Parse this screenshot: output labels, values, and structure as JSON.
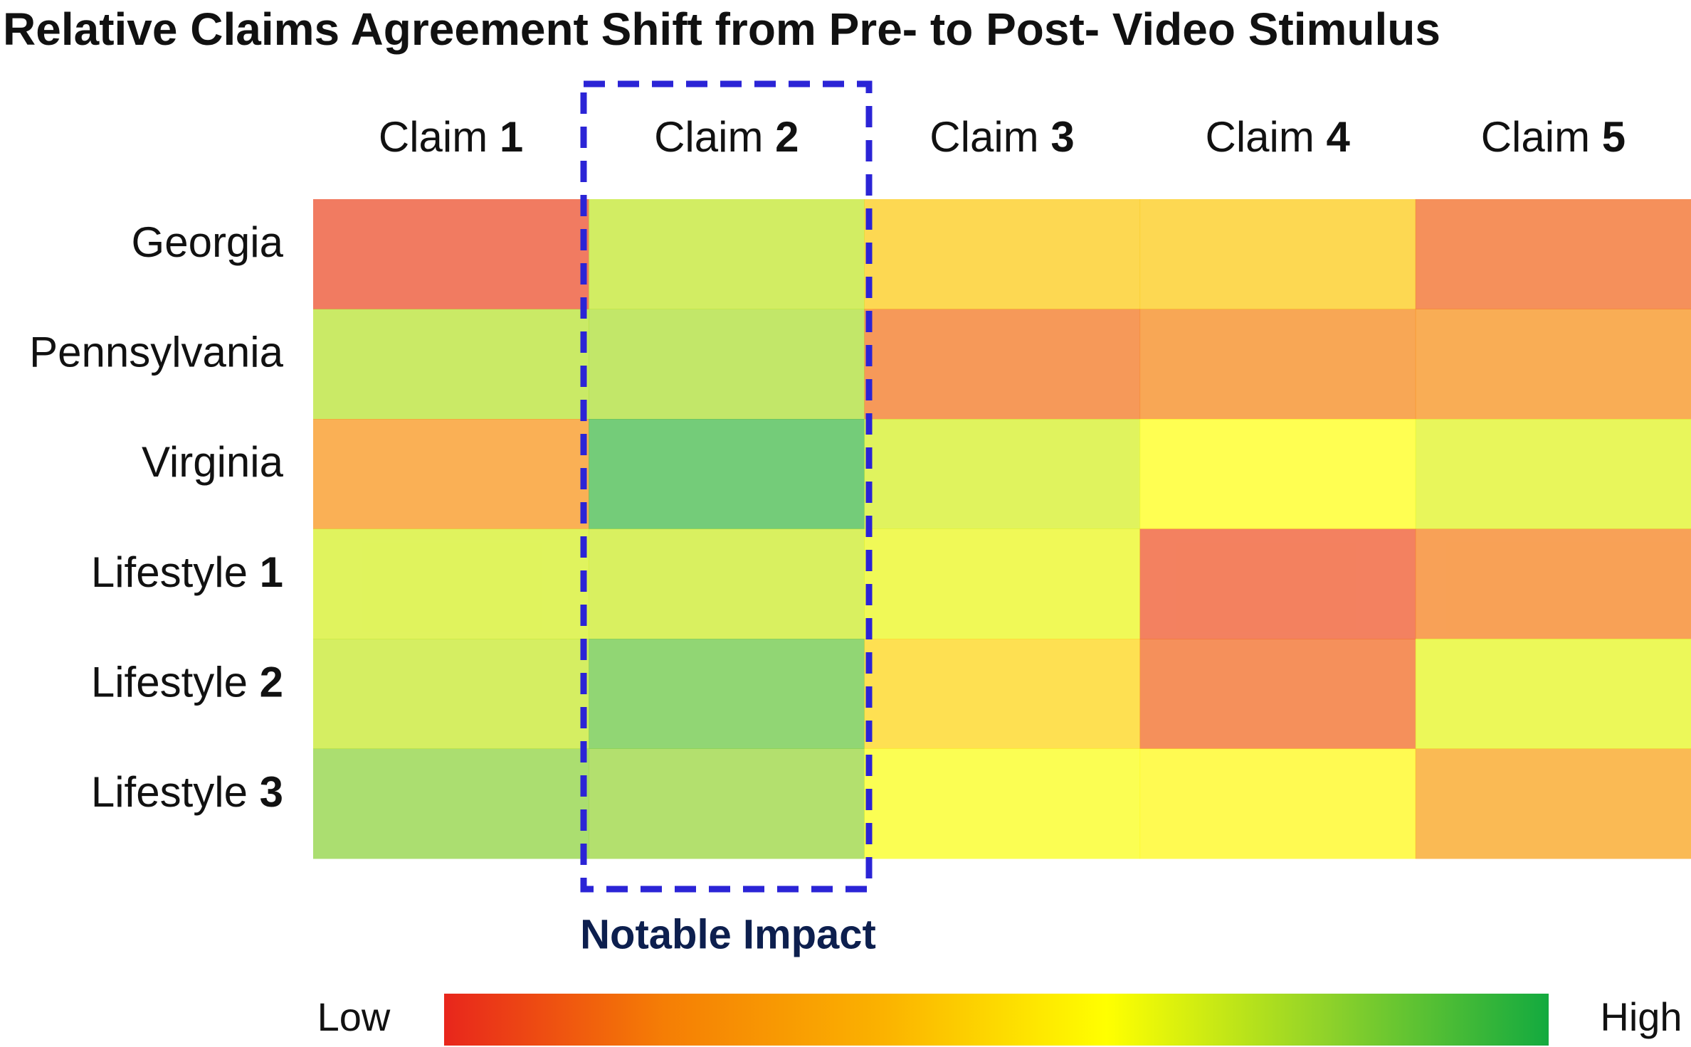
{
  "chart_data": {
    "type": "heatmap",
    "title": "Relative Claims Agreement Shift from Pre- to Post- Video Stimulus",
    "columns": [
      "Claim 1",
      "Claim 2",
      "Claim 3",
      "Claim 4",
      "Claim 5"
    ],
    "rows": [
      "Georgia",
      "Pennsylvania",
      "Virginia",
      "Lifestyle 1",
      "Lifestyle 2",
      "Lifestyle 3"
    ],
    "values": [
      [
        0.05,
        0.72,
        0.45,
        0.45,
        0.12
      ],
      [
        0.74,
        0.76,
        0.15,
        0.2,
        0.23
      ],
      [
        0.25,
        0.95,
        0.68,
        0.6,
        0.66
      ],
      [
        0.68,
        0.7,
        0.64,
        0.07,
        0.18
      ],
      [
        0.71,
        0.88,
        0.48,
        0.12,
        0.65
      ],
      [
        0.82,
        0.8,
        0.61,
        0.58,
        0.3
      ]
    ],
    "colorscale": [
      "#e8261c",
      "#f57e05",
      "#fbb300",
      "#ffff00",
      "#8fd22a",
      "#13aa3f"
    ],
    "colorbar_labels": [
      "Low",
      "High"
    ],
    "annotation": "Notable Impact"
  }
}
